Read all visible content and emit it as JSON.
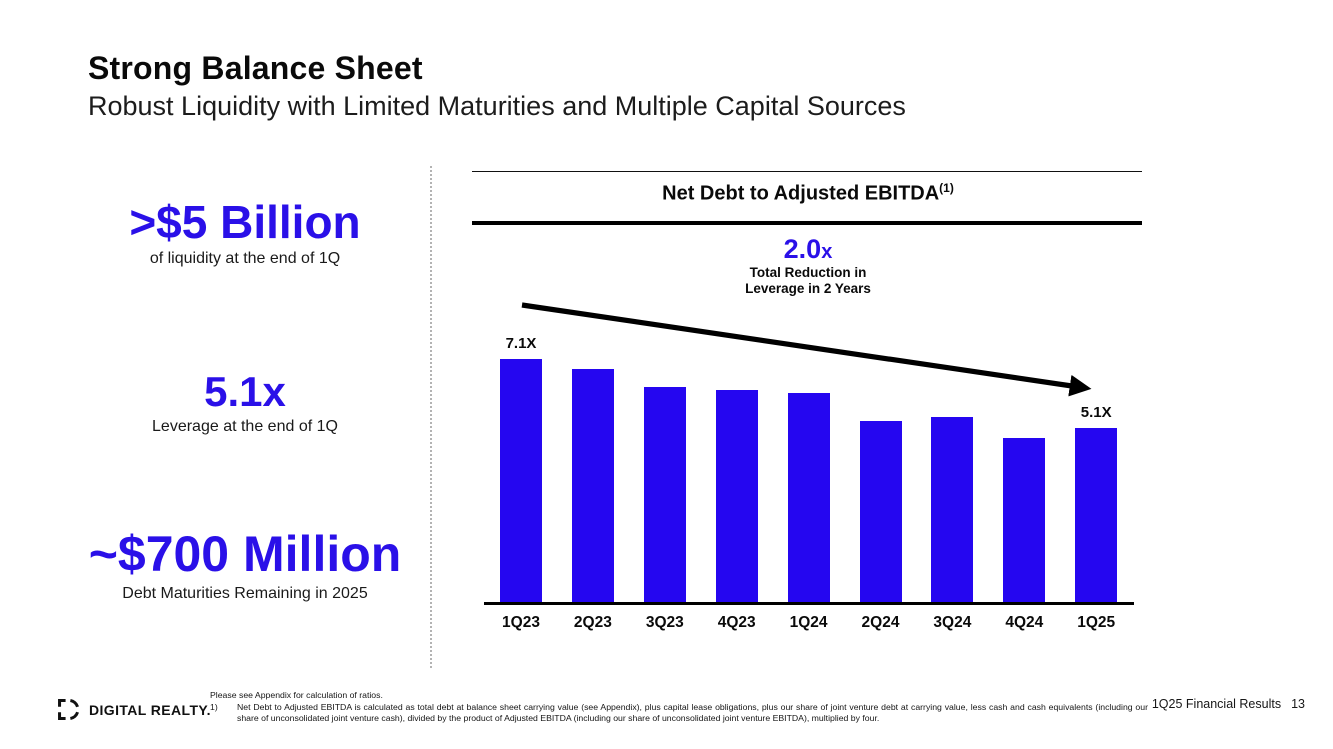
{
  "slide": {
    "title": "Strong Balance Sheet",
    "subtitle": "Robust Liquidity with Limited Maturities and Multiple Capital Sources"
  },
  "stats": [
    {
      "value": ">$5 Billion",
      "label": "of liquidity at the end of 1Q"
    },
    {
      "value": "5.1x",
      "label": "Leverage at the end of 1Q"
    },
    {
      "value": "~$700 Million",
      "label": "Debt Maturities Remaining in 2025"
    }
  ],
  "chart_data": {
    "type": "bar",
    "title": "Net Debt to Adjusted EBITDA",
    "title_superscript": "(1)",
    "categories": [
      "1Q23",
      "2Q23",
      "3Q23",
      "4Q23",
      "1Q24",
      "2Q24",
      "3Q24",
      "4Q24",
      "1Q25"
    ],
    "values": [
      7.1,
      6.8,
      6.3,
      6.2,
      6.1,
      5.3,
      5.4,
      4.8,
      5.1
    ],
    "bar_value_labels": [
      "7.1X",
      "",
      "",
      "",
      "",
      "",
      "",
      "",
      "5.1X"
    ],
    "annotation": {
      "value": "2.0",
      "suffix": "x",
      "line1": "Total Reduction in",
      "line2": "Leverage in 2 Years"
    },
    "ylim": [
      0,
      7.3
    ],
    "xlabel": "",
    "ylabel": "",
    "grid": false,
    "legend": "none"
  },
  "footer": {
    "logo_text": "DIGITAL REALTY",
    "logo_tm": ".",
    "note_line1": "Please see Appendix for calculation of ratios.",
    "note_number": "1)",
    "note_body": "Net Debt to Adjusted EBITDA is calculated as total debt at balance sheet carrying value (see Appendix), plus capital lease obligations, plus our share of joint venture debt at carrying value, less cash and cash equivalents (including our share of unconsolidated joint venture cash), divided by the product of Adjusted EBITDA (including our share of unconsolidated joint venture EBITDA), multiplied by four.",
    "page_label": "1Q25 Financial Results",
    "page_number": "13"
  },
  "colors": {
    "accent_blue": "#2a10e8",
    "bar_blue": "#2506f0",
    "divider_gray": "#b3b3b3"
  }
}
